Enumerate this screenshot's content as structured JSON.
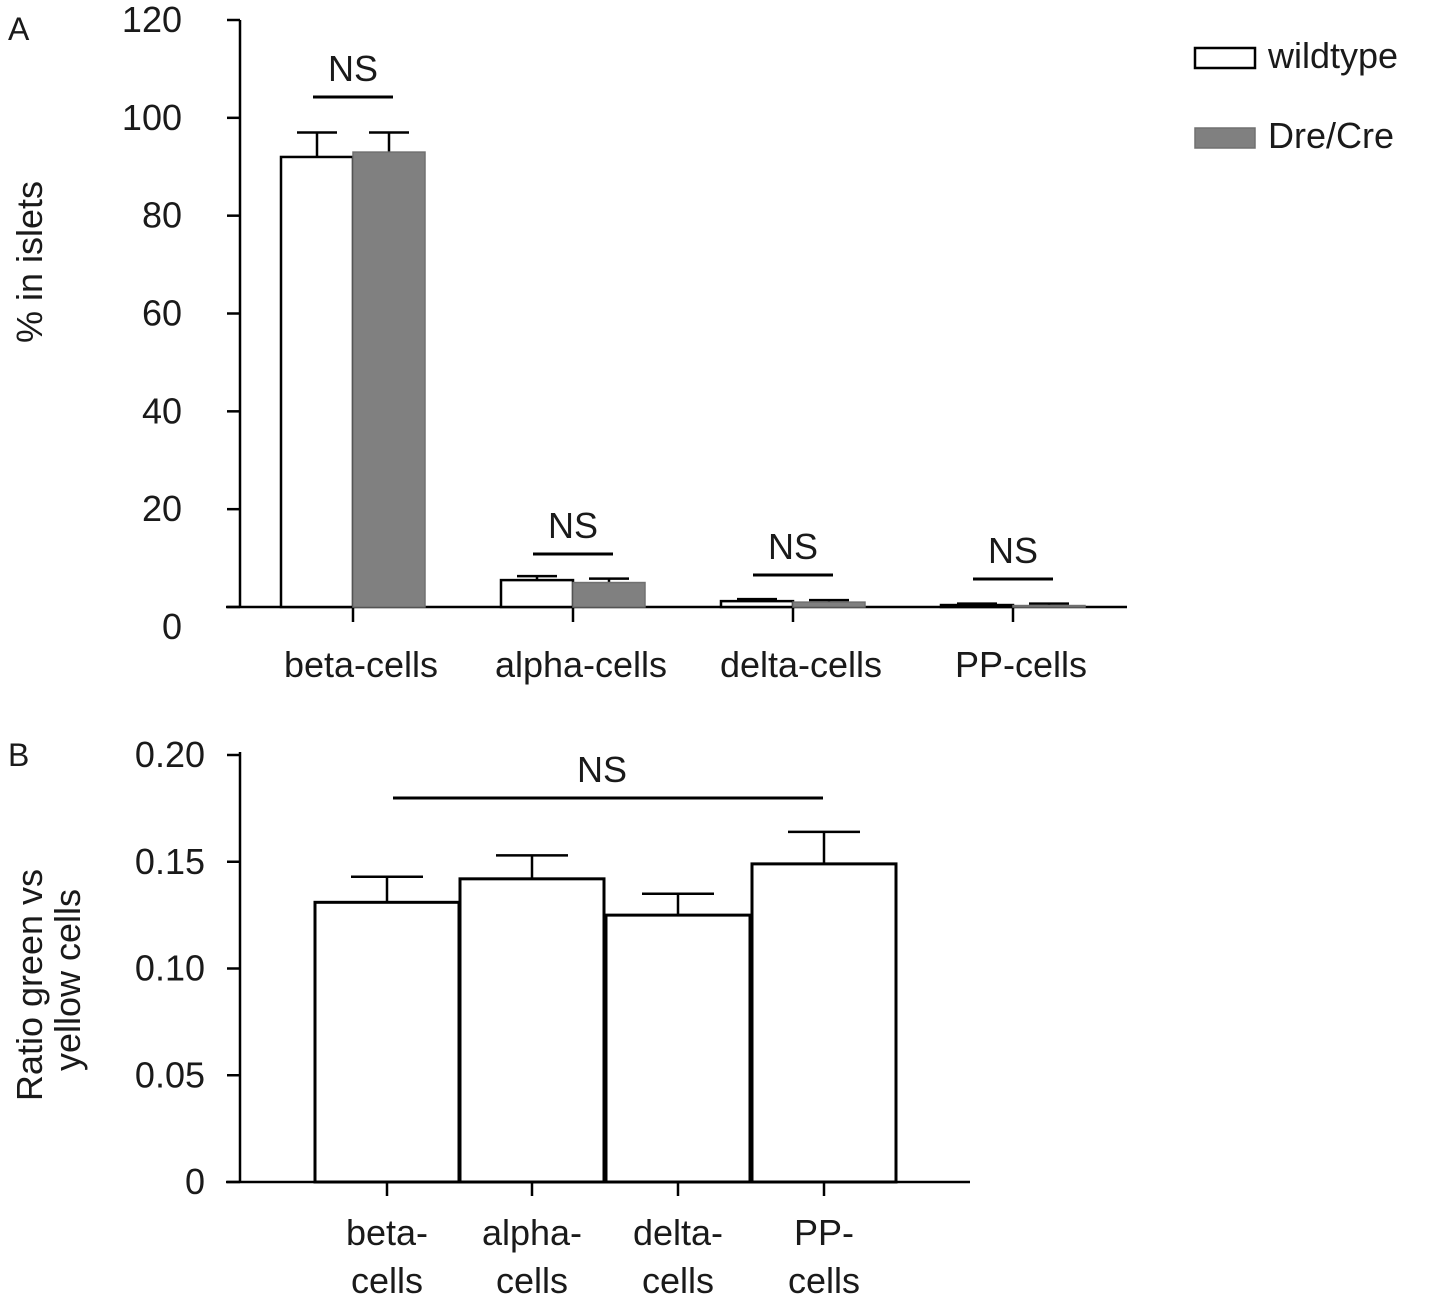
{
  "chart_data": [
    {
      "type": "bar",
      "panel": "A",
      "ylabel": "% in islets",
      "ylim": [
        0,
        120
      ],
      "yticks": [
        "0",
        "20",
        "40",
        "60",
        "80",
        "100",
        "120"
      ],
      "categories": [
        "beta-cells",
        "alpha-cells",
        "delta-cells",
        "PP-cells"
      ],
      "series": [
        {
          "name": "wildtype",
          "color": "#ffffff",
          "values": [
            92,
            5.5,
            1.2,
            0.4
          ],
          "errors": [
            5,
            0.8,
            0.4,
            0.3
          ]
        },
        {
          "name": "Dre/Cre",
          "color": "#808080",
          "values": [
            93,
            5.0,
            1.0,
            0.3
          ],
          "errors": [
            4,
            0.8,
            0.4,
            0.4
          ]
        }
      ],
      "annotations": [
        "NS",
        "NS",
        "NS",
        "NS"
      ],
      "legend_position": "top-right",
      "grid": false
    },
    {
      "type": "bar",
      "panel": "B",
      "ylabel": [
        "Ratio green vs",
        "yellow cells"
      ],
      "ylim": [
        0,
        0.2
      ],
      "yticks": [
        "0",
        "0.05",
        "0.10",
        "0.15",
        "0.20"
      ],
      "categories": [
        [
          "beta-",
          "cells"
        ],
        [
          "alpha-",
          "cells"
        ],
        [
          "delta-",
          "cells"
        ],
        [
          "PP-",
          "cells"
        ]
      ],
      "values": [
        0.131,
        0.142,
        0.125,
        0.149
      ],
      "errors": [
        0.012,
        0.011,
        0.01,
        0.015
      ],
      "annotations": [
        "NS"
      ],
      "grid": false
    }
  ]
}
